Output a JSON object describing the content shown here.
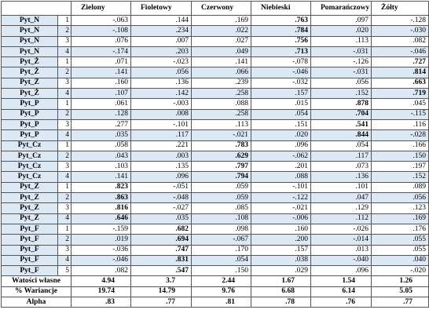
{
  "table": {
    "header": [
      "Zielony",
      "Fioletowy",
      "Czerwony",
      "Niebieski",
      "Pomarańczowy",
      "Żółty"
    ],
    "rows": [
      {
        "label": "Pyt_N",
        "index": "1",
        "values": [
          "-.063",
          ".144",
          ".169",
          ".763",
          ".097",
          "-.128"
        ],
        "bold_column": 3
      },
      {
        "label": "Pyt_N",
        "index": "2",
        "values": [
          "-.108",
          ".234",
          ".022",
          ".784",
          ".020",
          "-.030"
        ],
        "bold_column": 3
      },
      {
        "label": "Pyt_N",
        "index": "3",
        "values": [
          ".076",
          ".007",
          ".027",
          ".756",
          ".113",
          ".082"
        ],
        "bold_column": 3
      },
      {
        "label": "Pyt_N",
        "index": "4",
        "values": [
          "-.174",
          ".203",
          ".049",
          ".713",
          "-.031",
          "-.046"
        ],
        "bold_column": 3
      },
      {
        "label": "Pyt_Ż",
        "index": "1",
        "values": [
          ".071",
          "-.023",
          ".141",
          "-.078",
          "-.126",
          ".727"
        ],
        "bold_column": 5
      },
      {
        "label": "Pyt_Ż",
        "index": "2",
        "values": [
          ".141",
          ".056",
          ".066",
          "-.046",
          "-.031",
          ".814"
        ],
        "bold_column": 5
      },
      {
        "label": "Pyt_Ż",
        "index": "3",
        "values": [
          ".160",
          ".136",
          ".239",
          "-.032",
          ".056",
          ".663"
        ],
        "bold_column": 5
      },
      {
        "label": "Pyt_Ż",
        "index": "4",
        "values": [
          ".107",
          ".142",
          ".258",
          ".157",
          ".152",
          ".719"
        ],
        "bold_column": 5
      },
      {
        "label": "Pyt_P",
        "index": "1",
        "values": [
          ".061",
          "-.003",
          ".088",
          ".015",
          ".878",
          ".045"
        ],
        "bold_column": 4
      },
      {
        "label": "Pyt_P",
        "index": "2",
        "values": [
          ".128",
          ".008",
          ".258",
          ".054",
          ".704",
          "-.115"
        ],
        "bold_column": 4
      },
      {
        "label": "Pyt_P",
        "index": "3",
        "values": [
          ".277",
          "-.101",
          ".113",
          ".151",
          ".541",
          ".116"
        ],
        "bold_column": 4
      },
      {
        "label": "Pyt_P",
        "index": "4",
        "values": [
          ".035",
          ".117",
          "-.021",
          ".020",
          ".844",
          "-.028"
        ],
        "bold_column": 4
      },
      {
        "label": "Pyt_Cz",
        "index": "1",
        "values": [
          ".058",
          ".221",
          ".783",
          ".096",
          ".054",
          ".166"
        ],
        "bold_column": 2
      },
      {
        "label": "Pyt_Cz",
        "index": "2",
        "values": [
          ".043",
          ".003",
          ".629",
          "-.062",
          ".117",
          ".150"
        ],
        "bold_column": 2
      },
      {
        "label": "Pyt_Cz",
        "index": "3",
        "values": [
          ".103",
          ".135",
          ".797",
          ".201",
          ".073",
          ".197"
        ],
        "bold_column": 2
      },
      {
        "label": "Pyt_Cz",
        "index": "4",
        "values": [
          ".141",
          ".096",
          ".794",
          ".088",
          ".136",
          ".152"
        ],
        "bold_column": 2
      },
      {
        "label": "Pyt_Z",
        "index": "1",
        "values": [
          ".823",
          "-.051",
          ".059",
          "-.101",
          ".101",
          ".089"
        ],
        "bold_column": 0
      },
      {
        "label": "Pyt_Z",
        "index": "2",
        "values": [
          ".863",
          "-.048",
          ".059",
          "-.122",
          ".047",
          ".056"
        ],
        "bold_column": 0
      },
      {
        "label": "Pyt_Z",
        "index": "3",
        "values": [
          ".816",
          "-.027",
          ".085",
          "-.021",
          ".129",
          ".123"
        ],
        "bold_column": 0
      },
      {
        "label": "Pyt_Z",
        "index": "4",
        "values": [
          ".646",
          ".035",
          ".108",
          "-.006",
          ".112",
          ".169"
        ],
        "bold_column": 0
      },
      {
        "label": "Pyt_F",
        "index": "1",
        "values": [
          "-.159",
          ".682",
          ".098",
          ".160",
          "-.026",
          ".176"
        ],
        "bold_column": 1
      },
      {
        "label": "Pyt_F",
        "index": "2",
        "values": [
          ".019",
          ".694",
          "-.067",
          ".200",
          "-.014",
          ".055"
        ],
        "bold_column": 1
      },
      {
        "label": "Pyt_F",
        "index": "3",
        "values": [
          "-.036",
          ".747",
          ".170",
          ".157",
          ".013",
          ".055"
        ],
        "bold_column": 1
      },
      {
        "label": "Pyt_F",
        "index": "4",
        "values": [
          "-.046",
          ".831",
          ".054",
          ".038",
          "-.040",
          ".040"
        ],
        "bold_column": 1
      },
      {
        "label": "Pyt_F",
        "index": "5",
        "values": [
          ".082",
          ".547",
          ".150",
          ".029",
          ".096",
          "-.020"
        ],
        "bold_column": 1
      }
    ],
    "footer": [
      {
        "label": "Watości własne",
        "values": [
          "4.94",
          "3.7",
          "2.44",
          "1.67",
          "1.54",
          "1.26"
        ]
      },
      {
        "label": "% Wariancje",
        "values": [
          "19.74",
          "14.79",
          "9.76",
          "6.68",
          "6.14",
          "5.05"
        ]
      },
      {
        "label": "Alpha",
        "values": [
          ".83",
          ".77",
          ".81",
          ".78",
          ".76",
          ".77"
        ]
      }
    ]
  }
}
